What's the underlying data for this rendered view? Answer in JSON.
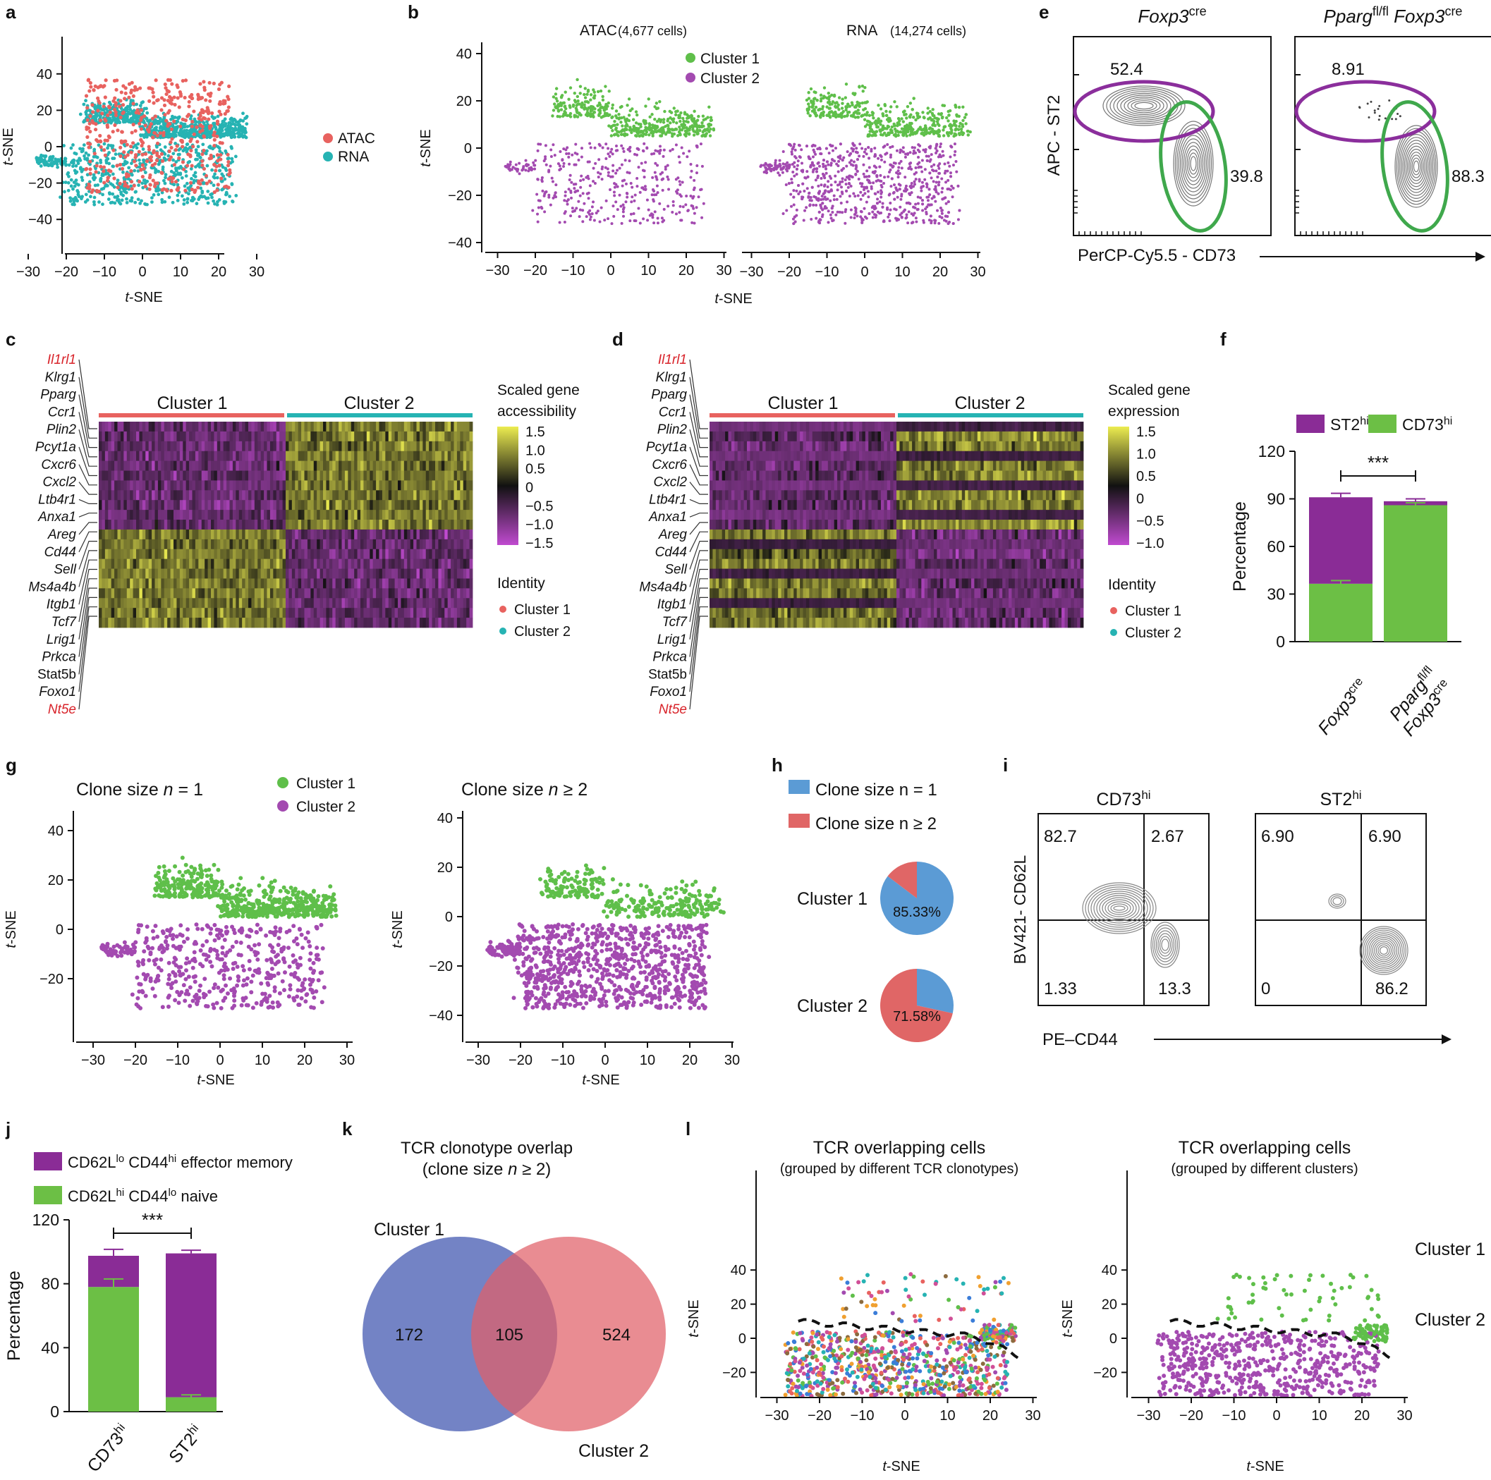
{
  "colors": {
    "atac": "#e8625f",
    "rna": "#26b3b3",
    "cluster1": "#5fbf4a",
    "cluster2": "#a34ab0",
    "purple_bar": "#8a2c96",
    "green_bar": "#6cbf45",
    "venn_blue": "#5468b8",
    "venn_red": "#e06068",
    "pie_blue": "#5b9bd5",
    "pie_red": "#e06666",
    "gene_red": "#d8232a",
    "ellipse_purple": "#8b2e9c",
    "ellipse_green": "#3fa84c",
    "heat_hi": "#ecec50",
    "heat_mid": "#111111",
    "heat_lo": "#c04ad0"
  },
  "panel_letters": {
    "a": "a",
    "b": "b",
    "c": "c",
    "d": "d",
    "e": "e",
    "f": "f",
    "g": "g",
    "h": "h",
    "i": "i",
    "j": "j",
    "k": "k",
    "l": "l"
  },
  "panel_a": {
    "xlabel": "t-SNE",
    "ylabel": "t-SNE",
    "xticks": [
      "−30",
      "−20",
      "−10",
      "0",
      "10",
      "20",
      "30"
    ],
    "yticks": [
      "−40",
      "−20",
      "0",
      "20",
      "40"
    ],
    "legend": [
      "ATAC",
      "RNA"
    ]
  },
  "panel_b": {
    "title_atac": "ATAC",
    "title_atac_cells": "(4,677 cells)",
    "title_rna": "RNA",
    "title_rna_cells": "(14,274 cells)",
    "legend": [
      "Cluster 1",
      "Cluster 2"
    ],
    "xlabel": "t-SNE",
    "ylabel": "t-SNE",
    "xticks": [
      "−30",
      "−20",
      "−10",
      "0",
      "10",
      "20",
      "30"
    ],
    "yticks": [
      "−40",
      "−20",
      "0",
      "20",
      "40"
    ]
  },
  "panel_e": {
    "left_title": "Foxp3",
    "left_sup": "cre",
    "right_title_a": "Pparg",
    "right_sup_a": "fl/fl",
    "right_title_b": "Foxp3",
    "right_sup_b": "cre",
    "ylabel": "APC - ST2",
    "xlabel": "PerCP-Cy5.5 - CD73",
    "left_vals": [
      "52.4",
      "39.8"
    ],
    "right_vals": [
      "8.91",
      "88.3"
    ]
  },
  "heatmap": {
    "genes": [
      "Il1rl1",
      "Klrg1",
      "Pparg",
      "Ccr1",
      "Plin2",
      "Pcyt1a",
      "Cxcr6",
      "Cxcl2",
      "Ltb4r1",
      "Anxa1",
      "Areg",
      "Cd44",
      "Sell",
      "Ms4a4b",
      "Itgb1",
      "Tcf7",
      "Lrig1",
      "Prkca",
      "Stat5b",
      "Foxo1",
      "Nt5e"
    ],
    "red_genes": [
      "Il1rl1",
      "Nt5e"
    ],
    "nonitalic": [
      "Stat5b"
    ],
    "cluster_labels": [
      "Cluster 1",
      "Cluster 2"
    ],
    "c_legend_title": [
      "Scaled gene",
      "accessibility"
    ],
    "c_legend_ticks": [
      "1.5",
      "1.0",
      "0.5",
      "0",
      "−0.5",
      "−1.0",
      "−1.5"
    ],
    "d_legend_title": [
      "Scaled gene",
      "expression"
    ],
    "d_legend_ticks": [
      "1.5",
      "1.0",
      "0.5",
      "0",
      "−0.5",
      "−1.0"
    ],
    "identity_title": "Identity",
    "identity_items": [
      "Cluster 1",
      "Cluster 2"
    ]
  },
  "chart_data": [
    {
      "id": "f",
      "type": "bar",
      "stacked": true,
      "categories": [
        "Foxp3cre",
        "Pparg fl/fl Foxp3cre"
      ],
      "series": [
        {
          "name": "ST2hi",
          "values": [
            54.5,
            2.5
          ],
          "top_err": [
            2.5,
            1.5
          ]
        },
        {
          "name": "CD73hi",
          "values": [
            36.5,
            86.0
          ],
          "err": [
            2.0,
            1.5
          ]
        }
      ],
      "ylabel": "Percentage",
      "ylim": [
        0,
        120
      ],
      "yticks": [
        "0",
        "30",
        "60",
        "90",
        "120"
      ],
      "significance": "***"
    },
    {
      "id": "h",
      "type": "pie",
      "pies": [
        {
          "label": "Cluster 1",
          "slices": [
            {
              "name": "Clone size n = 1",
              "value": 85.33
            },
            {
              "name": "Clone size n ≥ 2",
              "value": 14.67
            }
          ],
          "text": "85.33%"
        },
        {
          "label": "Cluster 2",
          "slices": [
            {
              "name": "Clone size n = 1",
              "value": 28.42
            },
            {
              "name": "Clone size n ≥ 2",
              "value": 71.58
            }
          ],
          "text": "71.58%"
        }
      ]
    },
    {
      "id": "j",
      "type": "bar",
      "stacked": true,
      "categories": [
        "CD73hi",
        "ST2hi"
      ],
      "series": [
        {
          "name": "CD62Llo CD44hi effector memory",
          "values": [
            19.5,
            90.0
          ],
          "top_err": [
            4.0,
            2.0
          ]
        },
        {
          "name": "CD62Lhi CD44lo naive",
          "values": [
            78.0,
            9.0
          ],
          "err": [
            5.0,
            1.5
          ]
        }
      ],
      "ylabel": "Percentage",
      "ylim": [
        0,
        120
      ],
      "yticks": [
        "0",
        "40",
        "80",
        "120"
      ],
      "significance": "***"
    },
    {
      "id": "k",
      "type": "venn",
      "title": [
        "TCR clonotype overlap",
        "(clone size n ≥ 2)"
      ],
      "sets": [
        "Cluster 1",
        "Cluster 2"
      ],
      "only1": 172,
      "both": 105,
      "only2": 524
    }
  ],
  "panel_f": {
    "legend_st2": "ST2",
    "legend_st2_sup": "hi",
    "legend_cd73": "CD73",
    "legend_cd73_sup": "hi",
    "x1": "Foxp3",
    "x1_sup": "cre",
    "x2a": "Pparg",
    "x2a_sup": "fl/fl",
    "x2b": "Foxp3",
    "x2b_sup": "cre"
  },
  "panel_g": {
    "title1_a": "Clone size ",
    "title1_n": "n",
    "title1_b": " = 1",
    "title2_a": "Clone size ",
    "title2_n": "n",
    "title2_b": " ≥ 2",
    "legend": [
      "Cluster 1",
      "Cluster 2"
    ],
    "xlabel": "t-SNE",
    "ylabel": "t-SNE",
    "xticks": [
      "−30",
      "−20",
      "−10",
      "0",
      "10",
      "20",
      "30"
    ],
    "yticks": [
      "−40",
      "−20",
      "0",
      "20",
      "40"
    ]
  },
  "panel_h": {
    "legend1": "Clone size n = 1",
    "legend2": "Clone size n ≥ 2"
  },
  "panel_i": {
    "title1": "CD73",
    "title1_sup": "hi",
    "title2": "ST2",
    "title2_sup": "hi",
    "ylabel": "BV421- CD62L",
    "xlabel": "PE–CD44",
    "q1": [
      "82.7",
      "2.67",
      "1.33",
      "13.3"
    ],
    "q2": [
      "6.90",
      "6.90",
      "0",
      "86.2"
    ]
  },
  "panel_j": {
    "legend1_a": "CD62L",
    "legend1_sup1": "lo",
    "legend1_b": " CD44",
    "legend1_sup2": "hi",
    "legend1_c": " effector memory",
    "legend2_a": "CD62L",
    "legend2_sup1": "hi",
    "legend2_b": " CD44",
    "legend2_sup2": "lo",
    "legend2_c": " naive",
    "x1": "CD73",
    "x1_sup": "hi",
    "x2": "ST2",
    "x2_sup": "hi"
  },
  "panel_l": {
    "title": "TCR overlapping cells",
    "sub1": "(grouped by different TCR clonotypes)",
    "sub2": "(grouped by different clusters)",
    "label_c1": "Cluster 1",
    "label_c2": "Cluster 2",
    "xlabel": "t-SNE",
    "ylabel": "t-SNE",
    "xticks": [
      "−30",
      "−20",
      "−10",
      "0",
      "10",
      "20",
      "30"
    ],
    "yticks": [
      "−20",
      "0",
      "20",
      "40"
    ]
  }
}
